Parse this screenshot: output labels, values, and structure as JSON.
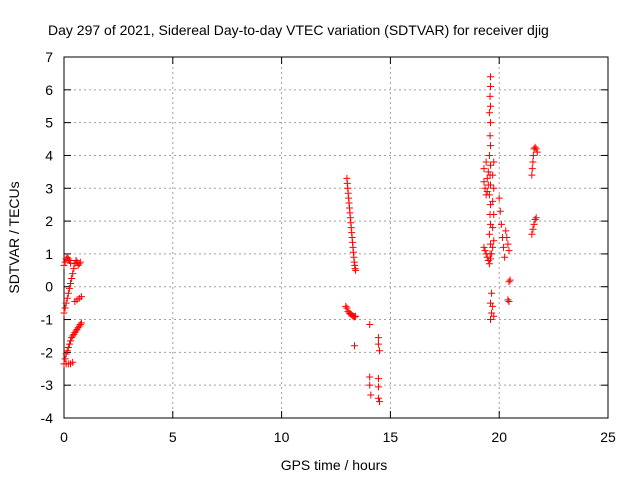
{
  "chart_data": {
    "type": "scatter",
    "title": "Day 297 of 2021, Sidereal Day-to-day VTEC variation (SDTVAR) for receiver djig",
    "xlabel": "GPS time / hours",
    "ylabel": "SDTVAR / TECUs",
    "xlim": [
      0,
      25
    ],
    "ylim": [
      -4,
      7
    ],
    "x_ticks": [
      0,
      5,
      10,
      15,
      20,
      25
    ],
    "y_ticks": [
      -4,
      -3,
      -2,
      -1,
      0,
      1,
      2,
      3,
      4,
      5,
      6,
      7
    ],
    "x_tick_labels": [
      "0",
      "5",
      "10",
      "15",
      "20",
      "25"
    ],
    "y_tick_labels": [
      "-4",
      "-3",
      "-2",
      "-1",
      "0",
      "1",
      "2",
      "3",
      "4",
      "5",
      "6",
      "7"
    ],
    "grid": true,
    "marker": "+",
    "color": "#ff0000",
    "series": [
      {
        "name": "SDTVAR",
        "points": [
          [
            0.0,
            -0.8
          ],
          [
            0.05,
            -0.65
          ],
          [
            0.1,
            -0.5
          ],
          [
            0.15,
            -0.35
          ],
          [
            0.2,
            -0.2
          ],
          [
            0.25,
            -0.05
          ],
          [
            0.3,
            0.1
          ],
          [
            0.35,
            0.25
          ],
          [
            0.4,
            0.4
          ],
          [
            0.45,
            0.55
          ],
          [
            0.5,
            0.7
          ],
          [
            0.55,
            0.8
          ],
          [
            0.6,
            0.75
          ],
          [
            0.65,
            0.65
          ],
          [
            0.7,
            0.7
          ],
          [
            0.75,
            0.75
          ],
          [
            0.0,
            0.65
          ],
          [
            0.05,
            0.75
          ],
          [
            0.1,
            0.85
          ],
          [
            0.15,
            0.9
          ],
          [
            0.2,
            0.85
          ],
          [
            0.25,
            0.8
          ],
          [
            0.3,
            0.72
          ],
          [
            0.0,
            -2.35
          ],
          [
            0.05,
            -2.2
          ],
          [
            0.1,
            -2.05
          ],
          [
            0.15,
            -1.95
          ],
          [
            0.2,
            -1.85
          ],
          [
            0.25,
            -1.75
          ],
          [
            0.3,
            -1.65
          ],
          [
            0.35,
            -1.55
          ],
          [
            0.4,
            -1.5
          ],
          [
            0.45,
            -1.45
          ],
          [
            0.5,
            -1.4
          ],
          [
            0.55,
            -1.35
          ],
          [
            0.6,
            -1.3
          ],
          [
            0.65,
            -1.25
          ],
          [
            0.7,
            -1.2
          ],
          [
            0.75,
            -1.15
          ],
          [
            0.8,
            -1.1
          ],
          [
            0.1,
            -2.35
          ],
          [
            0.2,
            -2.35
          ],
          [
            0.3,
            -2.35
          ],
          [
            0.4,
            -2.3
          ],
          [
            0.5,
            -0.45
          ],
          [
            0.6,
            -0.4
          ],
          [
            0.7,
            -0.35
          ],
          [
            0.8,
            -0.3
          ],
          [
            13.0,
            3.3
          ],
          [
            13.02,
            3.15
          ],
          [
            13.04,
            3.0
          ],
          [
            13.06,
            2.85
          ],
          [
            13.08,
            2.7
          ],
          [
            13.1,
            2.55
          ],
          [
            13.12,
            2.4
          ],
          [
            13.14,
            2.25
          ],
          [
            13.16,
            2.1
          ],
          [
            13.18,
            1.95
          ],
          [
            13.2,
            1.8
          ],
          [
            13.22,
            1.65
          ],
          [
            13.24,
            1.5
          ],
          [
            13.26,
            1.35
          ],
          [
            13.28,
            1.2
          ],
          [
            13.3,
            1.05
          ],
          [
            13.32,
            0.9
          ],
          [
            13.34,
            0.75
          ],
          [
            13.36,
            0.65
          ],
          [
            13.38,
            0.55
          ],
          [
            13.4,
            0.5
          ],
          [
            12.95,
            -0.6
          ],
          [
            13.0,
            -0.65
          ],
          [
            13.05,
            -0.75
          ],
          [
            13.1,
            -0.8
          ],
          [
            13.15,
            -0.82
          ],
          [
            13.2,
            -0.85
          ],
          [
            13.25,
            -0.88
          ],
          [
            13.3,
            -0.9
          ],
          [
            13.35,
            -0.92
          ],
          [
            13.4,
            -0.9
          ],
          [
            13.35,
            -1.8
          ],
          [
            14.05,
            -1.15
          ],
          [
            14.45,
            -1.55
          ],
          [
            14.45,
            -1.75
          ],
          [
            14.5,
            -1.95
          ],
          [
            14.05,
            -2.75
          ],
          [
            14.05,
            -3.0
          ],
          [
            14.1,
            -3.3
          ],
          [
            14.45,
            -2.8
          ],
          [
            14.45,
            -3.05
          ],
          [
            14.45,
            -3.4
          ],
          [
            14.5,
            -3.5
          ],
          [
            19.6,
            6.4
          ],
          [
            19.6,
            6.1
          ],
          [
            19.58,
            5.8
          ],
          [
            19.6,
            5.5
          ],
          [
            19.55,
            5.3
          ],
          [
            19.6,
            5.0
          ],
          [
            19.58,
            4.6
          ],
          [
            19.6,
            4.3
          ],
          [
            19.55,
            4.0
          ],
          [
            19.6,
            3.7
          ],
          [
            19.58,
            3.4
          ],
          [
            19.6,
            3.1
          ],
          [
            19.55,
            2.8
          ],
          [
            19.6,
            2.5
          ],
          [
            19.58,
            2.2
          ],
          [
            19.6,
            1.9
          ],
          [
            19.55,
            1.6
          ],
          [
            19.6,
            1.3
          ],
          [
            19.58,
            1.0
          ],
          [
            19.3,
            3.2
          ],
          [
            19.35,
            3.0
          ],
          [
            19.4,
            2.8
          ],
          [
            19.45,
            2.9
          ],
          [
            19.5,
            3.1
          ],
          [
            19.3,
            3.6
          ],
          [
            19.4,
            3.8
          ],
          [
            19.5,
            3.5
          ],
          [
            19.45,
            3.3
          ],
          [
            19.3,
            1.2
          ],
          [
            19.35,
            1.1
          ],
          [
            19.4,
            1.0
          ],
          [
            19.45,
            0.9
          ],
          [
            19.5,
            0.8
          ],
          [
            19.55,
            0.7
          ],
          [
            19.6,
            0.85
          ],
          [
            19.65,
            1.0
          ],
          [
            19.7,
            1.2
          ],
          [
            19.75,
            1.4
          ],
          [
            19.7,
            1.8
          ],
          [
            19.75,
            2.2
          ],
          [
            19.7,
            2.6
          ],
          [
            19.75,
            3.0
          ],
          [
            19.7,
            3.4
          ],
          [
            19.75,
            3.8
          ],
          [
            19.65,
            -0.2
          ],
          [
            19.6,
            -0.5
          ],
          [
            19.65,
            -0.8
          ],
          [
            19.6,
            -1.0
          ],
          [
            19.7,
            -0.6
          ],
          [
            19.75,
            -0.9
          ],
          [
            20.0,
            2.7
          ],
          [
            20.05,
            2.3
          ],
          [
            20.1,
            1.9
          ],
          [
            20.15,
            1.5
          ],
          [
            20.2,
            1.2
          ],
          [
            20.25,
            0.9
          ],
          [
            20.3,
            1.7
          ],
          [
            20.35,
            1.5
          ],
          [
            20.4,
            1.3
          ],
          [
            20.45,
            1.1
          ],
          [
            20.5,
            0.2
          ],
          [
            20.45,
            0.15
          ],
          [
            20.4,
            -0.4
          ],
          [
            20.45,
            -0.45
          ],
          [
            21.5,
            3.4
          ],
          [
            21.52,
            3.6
          ],
          [
            21.55,
            3.8
          ],
          [
            21.57,
            4.0
          ],
          [
            21.6,
            4.2
          ],
          [
            21.65,
            4.25
          ],
          [
            21.7,
            4.2
          ],
          [
            21.75,
            4.1
          ],
          [
            21.5,
            1.6
          ],
          [
            21.55,
            1.75
          ],
          [
            21.6,
            1.9
          ],
          [
            21.65,
            2.05
          ],
          [
            21.7,
            2.1
          ]
        ]
      }
    ]
  }
}
